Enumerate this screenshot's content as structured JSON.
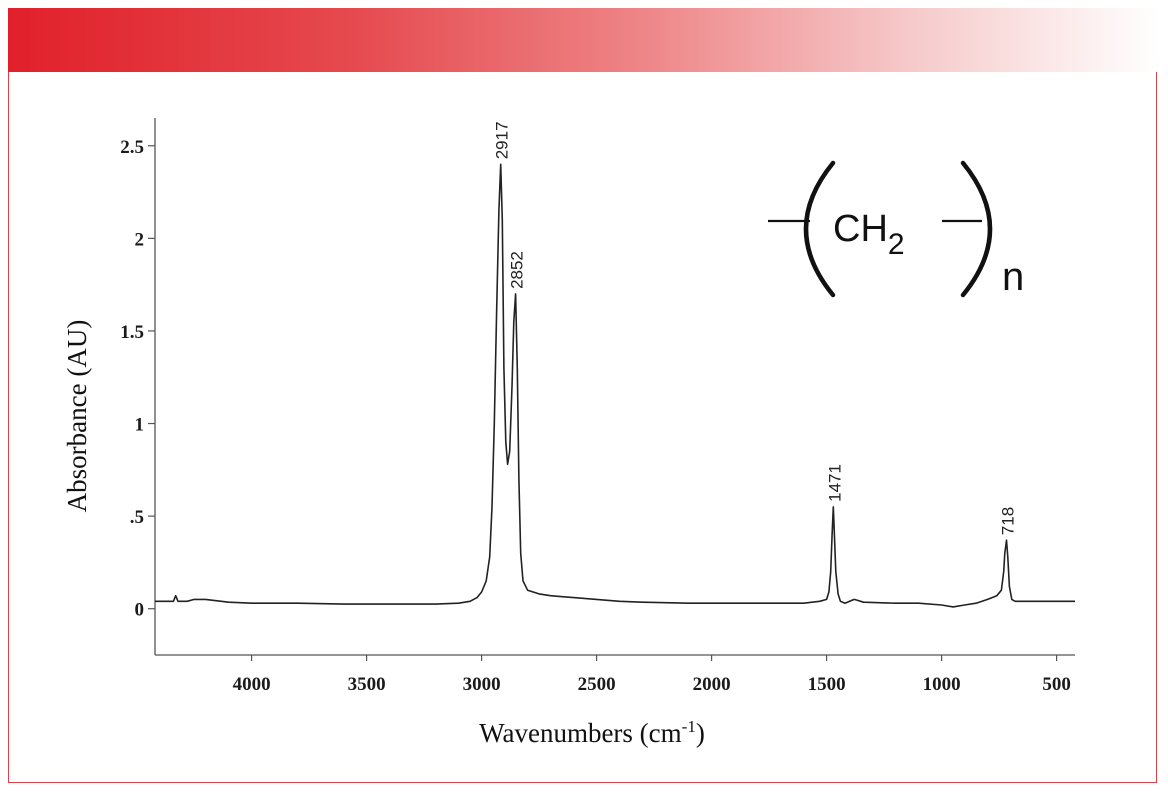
{
  "chart_data": {
    "type": "line",
    "xlabel": "Wavenumbers (cm",
    "xlabel_superscript": "-1",
    "xlabel_suffix": ")",
    "ylabel": "Absorbance (AU)",
    "xlim": [
      4420,
      420
    ],
    "ylim": [
      -0.25,
      2.65
    ],
    "x_reversed": true,
    "grid": false,
    "x_ticks": [
      4000,
      3500,
      3000,
      2500,
      2000,
      1500,
      1000,
      500
    ],
    "x_tick_labels": [
      "4000",
      "3500",
      "3000",
      "2500",
      "2000",
      "1500",
      "1000",
      "500"
    ],
    "y_ticks": [
      0,
      0.5,
      1,
      1.5,
      2,
      2.5
    ],
    "y_tick_labels": [
      "0",
      ".5",
      "1",
      "1.5",
      "2",
      "2.5"
    ],
    "series": [
      {
        "color": "#222222",
        "points": [
          [
            4420,
            0.04
          ],
          [
            4340,
            0.04
          ],
          [
            4330,
            0.07
          ],
          [
            4320,
            0.04
          ],
          [
            4280,
            0.04
          ],
          [
            4250,
            0.05
          ],
          [
            4200,
            0.05
          ],
          [
            4100,
            0.035
          ],
          [
            4000,
            0.03
          ],
          [
            3800,
            0.03
          ],
          [
            3600,
            0.025
          ],
          [
            3400,
            0.025
          ],
          [
            3200,
            0.025
          ],
          [
            3100,
            0.03
          ],
          [
            3050,
            0.04
          ],
          [
            3020,
            0.06
          ],
          [
            3000,
            0.09
          ],
          [
            2980,
            0.15
          ],
          [
            2965,
            0.28
          ],
          [
            2955,
            0.55
          ],
          [
            2945,
            1.0
          ],
          [
            2935,
            1.6
          ],
          [
            2925,
            2.15
          ],
          [
            2917,
            2.4
          ],
          [
            2910,
            2.1
          ],
          [
            2903,
            1.3
          ],
          [
            2895,
            0.9
          ],
          [
            2887,
            0.78
          ],
          [
            2878,
            0.85
          ],
          [
            2868,
            1.2
          ],
          [
            2860,
            1.55
          ],
          [
            2852,
            1.7
          ],
          [
            2845,
            1.3
          ],
          [
            2838,
            0.7
          ],
          [
            2830,
            0.3
          ],
          [
            2820,
            0.15
          ],
          [
            2800,
            0.1
          ],
          [
            2750,
            0.08
          ],
          [
            2700,
            0.07
          ],
          [
            2650,
            0.065
          ],
          [
            2600,
            0.06
          ],
          [
            2500,
            0.05
          ],
          [
            2400,
            0.04
          ],
          [
            2300,
            0.035
          ],
          [
            2100,
            0.03
          ],
          [
            1900,
            0.03
          ],
          [
            1700,
            0.03
          ],
          [
            1600,
            0.03
          ],
          [
            1530,
            0.04
          ],
          [
            1500,
            0.05
          ],
          [
            1490,
            0.09
          ],
          [
            1482,
            0.2
          ],
          [
            1476,
            0.4
          ],
          [
            1471,
            0.55
          ],
          [
            1466,
            0.4
          ],
          [
            1460,
            0.2
          ],
          [
            1450,
            0.08
          ],
          [
            1440,
            0.04
          ],
          [
            1420,
            0.03
          ],
          [
            1400,
            0.04
          ],
          [
            1380,
            0.05
          ],
          [
            1365,
            0.045
          ],
          [
            1340,
            0.035
          ],
          [
            1200,
            0.03
          ],
          [
            1100,
            0.03
          ],
          [
            1000,
            0.02
          ],
          [
            950,
            0.01
          ],
          [
            900,
            0.02
          ],
          [
            850,
            0.03
          ],
          [
            800,
            0.05
          ],
          [
            760,
            0.07
          ],
          [
            740,
            0.1
          ],
          [
            730,
            0.2
          ],
          [
            725,
            0.3
          ],
          [
            718,
            0.37
          ],
          [
            712,
            0.28
          ],
          [
            705,
            0.12
          ],
          [
            695,
            0.05
          ],
          [
            680,
            0.04
          ],
          [
            600,
            0.04
          ],
          [
            500,
            0.04
          ],
          [
            420,
            0.04
          ]
        ]
      }
    ],
    "annotations": [
      {
        "text": "2917",
        "x": 2917,
        "y": 2.4
      },
      {
        "text": "2852",
        "x": 2852,
        "y": 1.7
      },
      {
        "text": "1471",
        "x": 1471,
        "y": 0.55
      },
      {
        "text": "718",
        "x": 718,
        "y": 0.37
      }
    ]
  },
  "structure": {
    "group": "CH",
    "subscript": "2",
    "repeat": "n"
  }
}
